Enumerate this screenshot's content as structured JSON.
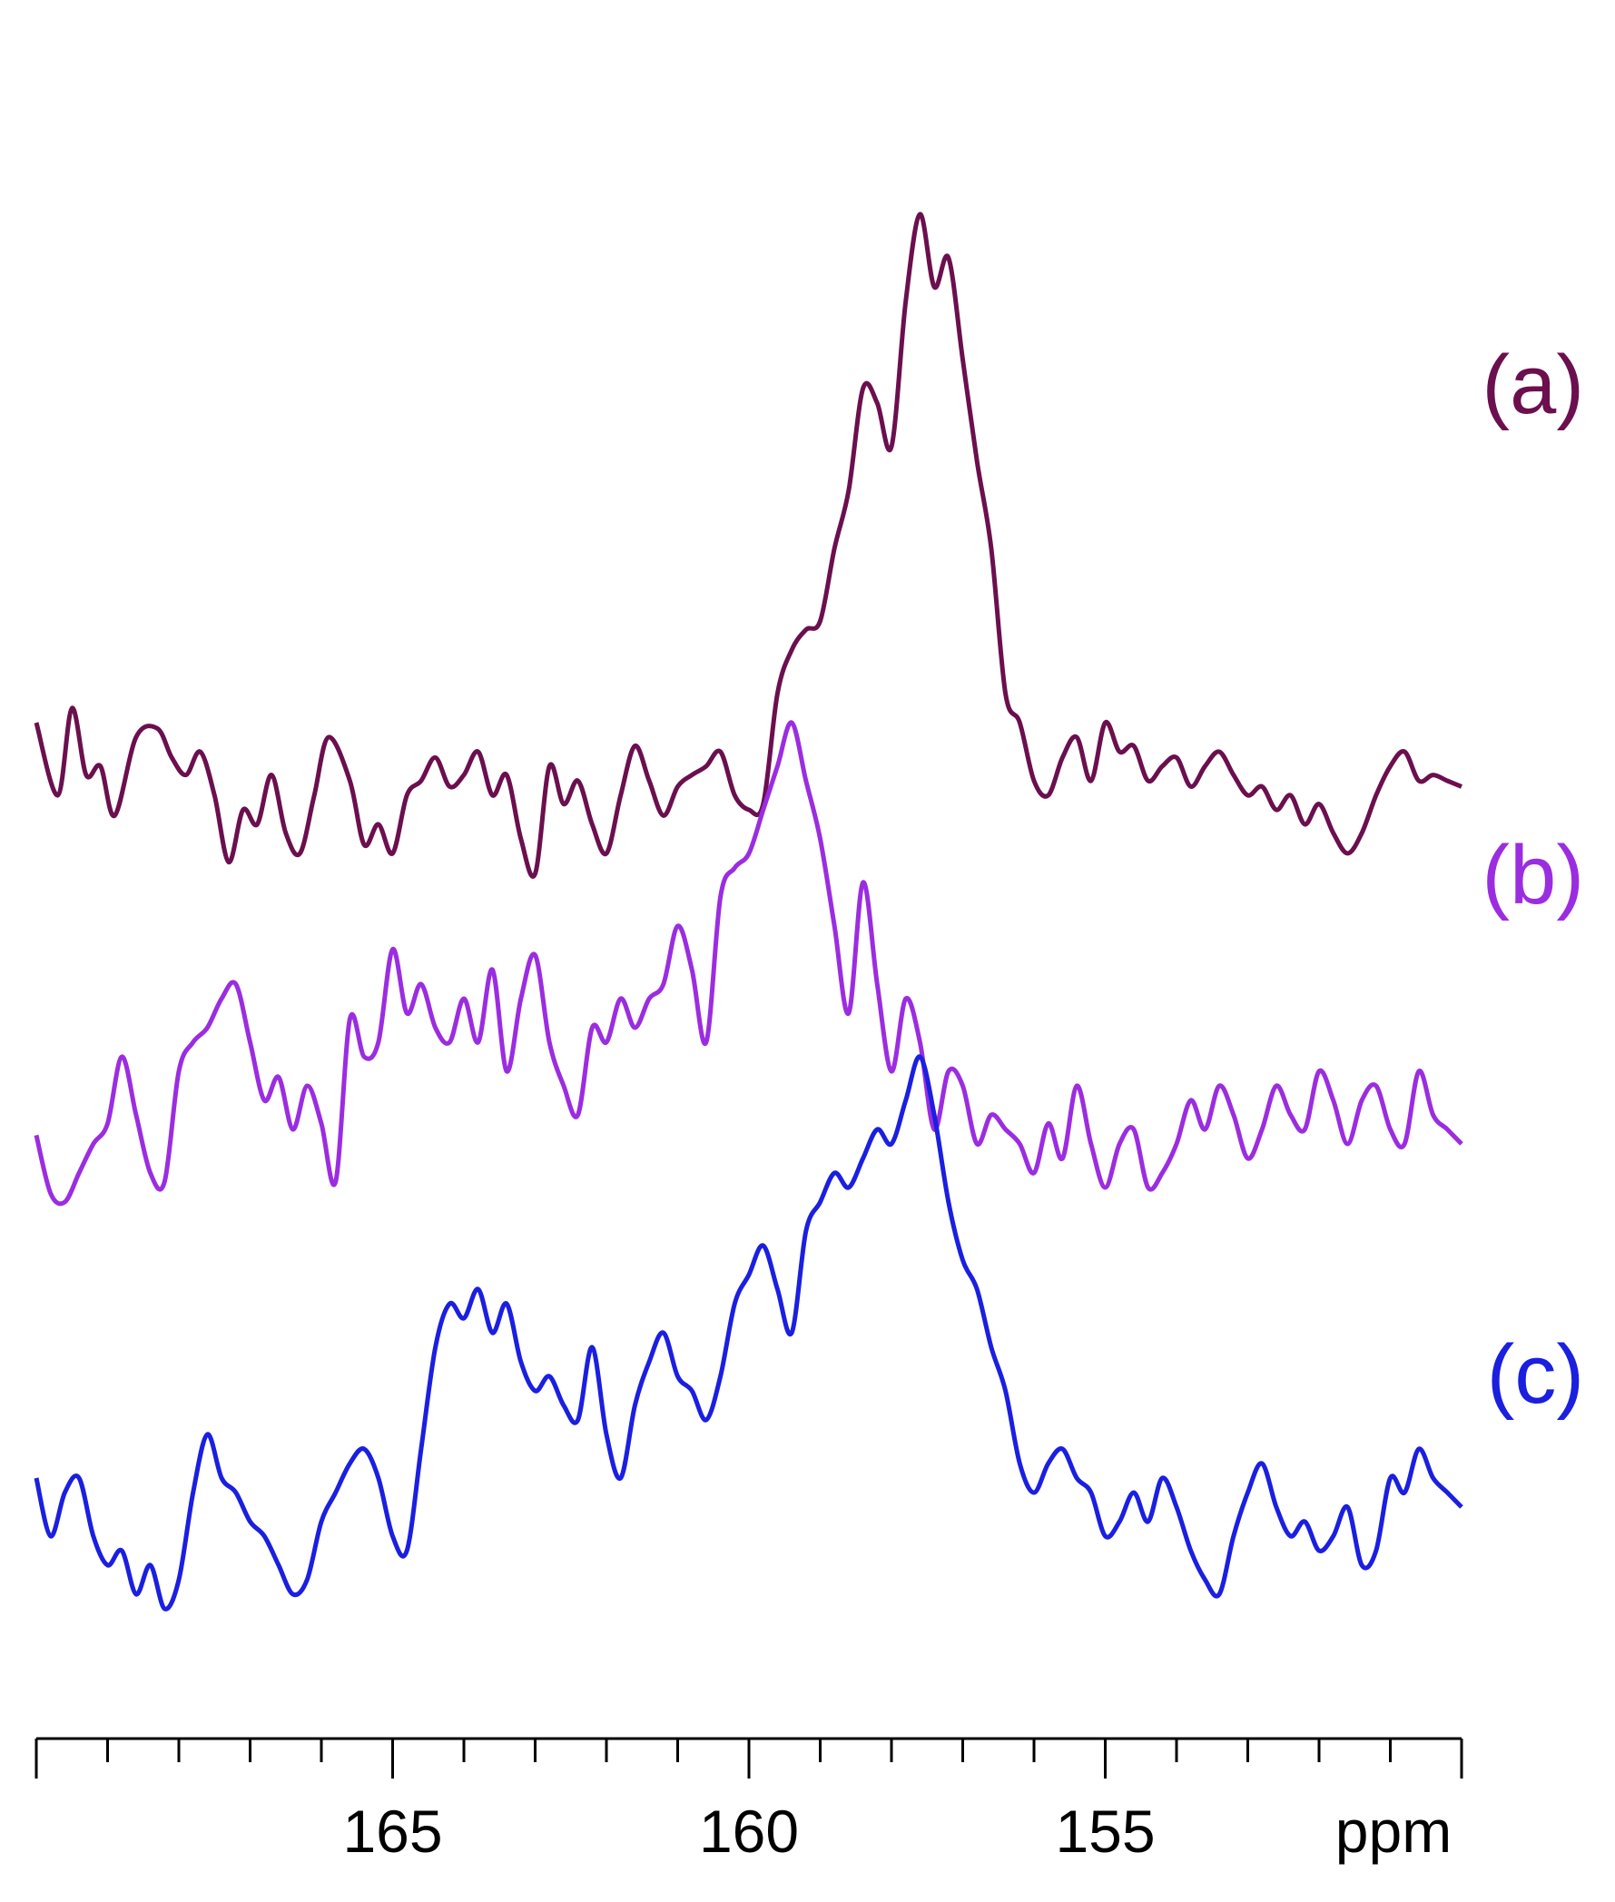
{
  "chart_data": {
    "type": "line",
    "xlabel": "ppm",
    "xlim": [
      170,
      150
    ],
    "x_reversed": true,
    "x_major_ticks": [
      165,
      160,
      155
    ],
    "x_minor_step": 1,
    "y_axis_shown": false,
    "grid": false,
    "legend": "labels at right of each trace",
    "series": [
      {
        "name": "(a)",
        "color": "#6b0f4e",
        "offset": 2.4,
        "points": [
          [
            170.0,
            0.3
          ],
          [
            169.7,
            0.05
          ],
          [
            169.5,
            0.35
          ],
          [
            169.3,
            0.12
          ],
          [
            169.1,
            0.15
          ],
          [
            168.9,
            -0.02
          ],
          [
            168.6,
            0.25
          ],
          [
            168.3,
            0.28
          ],
          [
            168.1,
            0.18
          ],
          [
            167.9,
            0.12
          ],
          [
            167.7,
            0.2
          ],
          [
            167.5,
            0.05
          ],
          [
            167.3,
            -0.18
          ],
          [
            167.1,
            0.0
          ],
          [
            166.9,
            -0.05
          ],
          [
            166.7,
            0.12
          ],
          [
            166.5,
            -0.08
          ],
          [
            166.3,
            -0.15
          ],
          [
            166.1,
            0.05
          ],
          [
            165.9,
            0.25
          ],
          [
            165.6,
            0.1
          ],
          [
            165.4,
            -0.12
          ],
          [
            165.2,
            -0.05
          ],
          [
            165.0,
            -0.15
          ],
          [
            164.8,
            0.05
          ],
          [
            164.6,
            0.1
          ],
          [
            164.4,
            0.18
          ],
          [
            164.2,
            0.08
          ],
          [
            164.0,
            0.12
          ],
          [
            163.8,
            0.2
          ],
          [
            163.6,
            0.05
          ],
          [
            163.4,
            0.12
          ],
          [
            163.2,
            -0.1
          ],
          [
            163.0,
            -0.22
          ],
          [
            162.8,
            0.15
          ],
          [
            162.6,
            0.02
          ],
          [
            162.4,
            0.1
          ],
          [
            162.2,
            -0.05
          ],
          [
            162.0,
            -0.15
          ],
          [
            161.8,
            0.05
          ],
          [
            161.6,
            0.22
          ],
          [
            161.4,
            0.1
          ],
          [
            161.2,
            -0.02
          ],
          [
            161.0,
            0.08
          ],
          [
            160.8,
            0.12
          ],
          [
            160.6,
            0.15
          ],
          [
            160.4,
            0.2
          ],
          [
            160.2,
            0.05
          ],
          [
            160.0,
            0.0
          ],
          [
            159.8,
            0.02
          ],
          [
            159.6,
            0.4
          ],
          [
            159.4,
            0.55
          ],
          [
            159.2,
            0.62
          ],
          [
            159.0,
            0.65
          ],
          [
            158.8,
            0.9
          ],
          [
            158.6,
            1.1
          ],
          [
            158.4,
            1.45
          ],
          [
            158.2,
            1.4
          ],
          [
            158.0,
            1.25
          ],
          [
            157.8,
            1.75
          ],
          [
            157.6,
            2.05
          ],
          [
            157.4,
            1.8
          ],
          [
            157.2,
            1.9
          ],
          [
            157.0,
            1.55
          ],
          [
            156.8,
            1.2
          ],
          [
            156.6,
            0.9
          ],
          [
            156.4,
            0.4
          ],
          [
            156.2,
            0.3
          ],
          [
            156.0,
            0.1
          ],
          [
            155.8,
            0.05
          ],
          [
            155.6,
            0.18
          ],
          [
            155.4,
            0.25
          ],
          [
            155.2,
            0.1
          ],
          [
            155.0,
            0.3
          ],
          [
            154.8,
            0.2
          ],
          [
            154.6,
            0.22
          ],
          [
            154.4,
            0.1
          ],
          [
            154.2,
            0.15
          ],
          [
            154.0,
            0.18
          ],
          [
            153.8,
            0.08
          ],
          [
            153.6,
            0.15
          ],
          [
            153.4,
            0.2
          ],
          [
            153.2,
            0.12
          ],
          [
            153.0,
            0.05
          ],
          [
            152.8,
            0.08
          ],
          [
            152.6,
            0.0
          ],
          [
            152.4,
            0.05
          ],
          [
            152.2,
            -0.05
          ],
          [
            152.0,
            0.02
          ],
          [
            151.8,
            -0.08
          ],
          [
            151.6,
            -0.15
          ],
          [
            151.4,
            -0.08
          ],
          [
            151.2,
            0.05
          ],
          [
            151.0,
            0.15
          ],
          [
            150.8,
            0.2
          ],
          [
            150.6,
            0.1
          ],
          [
            150.4,
            0.12
          ],
          [
            150.2,
            0.1
          ],
          [
            150.0,
            0.08
          ]
        ]
      },
      {
        "name": "(b)",
        "color": "#9b2de0",
        "offset": 1.2,
        "points": [
          [
            170.0,
            0.08
          ],
          [
            169.8,
            -0.12
          ],
          [
            169.6,
            -0.15
          ],
          [
            169.4,
            -0.05
          ],
          [
            169.2,
            0.05
          ],
          [
            169.0,
            0.12
          ],
          [
            168.8,
            0.35
          ],
          [
            168.6,
            0.15
          ],
          [
            168.4,
            -0.05
          ],
          [
            168.2,
            -0.08
          ],
          [
            168.0,
            0.3
          ],
          [
            167.8,
            0.4
          ],
          [
            167.6,
            0.45
          ],
          [
            167.4,
            0.55
          ],
          [
            167.2,
            0.6
          ],
          [
            167.0,
            0.4
          ],
          [
            166.8,
            0.2
          ],
          [
            166.6,
            0.28
          ],
          [
            166.4,
            0.1
          ],
          [
            166.2,
            0.25
          ],
          [
            166.0,
            0.12
          ],
          [
            165.8,
            -0.08
          ],
          [
            165.6,
            0.48
          ],
          [
            165.4,
            0.35
          ],
          [
            165.2,
            0.4
          ],
          [
            165.0,
            0.72
          ],
          [
            164.8,
            0.5
          ],
          [
            164.6,
            0.6
          ],
          [
            164.4,
            0.45
          ],
          [
            164.2,
            0.4
          ],
          [
            164.0,
            0.55
          ],
          [
            163.8,
            0.4
          ],
          [
            163.6,
            0.65
          ],
          [
            163.4,
            0.3
          ],
          [
            163.2,
            0.55
          ],
          [
            163.0,
            0.7
          ],
          [
            162.8,
            0.4
          ],
          [
            162.6,
            0.25
          ],
          [
            162.4,
            0.15
          ],
          [
            162.2,
            0.45
          ],
          [
            162.0,
            0.4
          ],
          [
            161.8,
            0.55
          ],
          [
            161.6,
            0.45
          ],
          [
            161.4,
            0.55
          ],
          [
            161.2,
            0.6
          ],
          [
            161.0,
            0.8
          ],
          [
            160.8,
            0.65
          ],
          [
            160.6,
            0.4
          ],
          [
            160.4,
            0.9
          ],
          [
            160.2,
            1.0
          ],
          [
            160.0,
            1.05
          ],
          [
            159.8,
            1.2
          ],
          [
            159.6,
            1.35
          ],
          [
            159.4,
            1.5
          ],
          [
            159.2,
            1.3
          ],
          [
            159.0,
            1.1
          ],
          [
            158.8,
            0.8
          ],
          [
            158.6,
            0.5
          ],
          [
            158.4,
            0.95
          ],
          [
            158.2,
            0.6
          ],
          [
            158.0,
            0.3
          ],
          [
            157.8,
            0.55
          ],
          [
            157.6,
            0.4
          ],
          [
            157.4,
            0.1
          ],
          [
            157.2,
            0.3
          ],
          [
            157.0,
            0.25
          ],
          [
            156.8,
            0.05
          ],
          [
            156.6,
            0.15
          ],
          [
            156.4,
            0.1
          ],
          [
            156.2,
            0.05
          ],
          [
            156.0,
            -0.05
          ],
          [
            155.8,
            0.12
          ],
          [
            155.6,
            0.0
          ],
          [
            155.4,
            0.25
          ],
          [
            155.2,
            0.05
          ],
          [
            155.0,
            -0.1
          ],
          [
            154.8,
            0.05
          ],
          [
            154.6,
            0.1
          ],
          [
            154.4,
            -0.1
          ],
          [
            154.2,
            -0.05
          ],
          [
            154.0,
            0.05
          ],
          [
            153.8,
            0.2
          ],
          [
            153.6,
            0.1
          ],
          [
            153.4,
            0.25
          ],
          [
            153.2,
            0.15
          ],
          [
            153.0,
            0.0
          ],
          [
            152.8,
            0.1
          ],
          [
            152.6,
            0.25
          ],
          [
            152.4,
            0.15
          ],
          [
            152.2,
            0.1
          ],
          [
            152.0,
            0.3
          ],
          [
            151.8,
            0.2
          ],
          [
            151.6,
            0.05
          ],
          [
            151.4,
            0.2
          ],
          [
            151.2,
            0.25
          ],
          [
            151.0,
            0.1
          ],
          [
            150.8,
            0.05
          ],
          [
            150.6,
            0.3
          ],
          [
            150.4,
            0.15
          ],
          [
            150.2,
            0.1
          ],
          [
            150.0,
            0.05
          ]
        ]
      },
      {
        "name": "(c)",
        "color": "#1a1fe0",
        "offset": 0.0,
        "points": [
          [
            170.0,
            0.1
          ],
          [
            169.8,
            -0.1
          ],
          [
            169.6,
            0.05
          ],
          [
            169.4,
            0.1
          ],
          [
            169.2,
            -0.1
          ],
          [
            169.0,
            -0.2
          ],
          [
            168.8,
            -0.15
          ],
          [
            168.6,
            -0.3
          ],
          [
            168.4,
            -0.2
          ],
          [
            168.2,
            -0.35
          ],
          [
            168.0,
            -0.25
          ],
          [
            167.8,
            0.05
          ],
          [
            167.6,
            0.25
          ],
          [
            167.4,
            0.1
          ],
          [
            167.2,
            0.05
          ],
          [
            167.0,
            -0.05
          ],
          [
            166.8,
            -0.1
          ],
          [
            166.6,
            -0.2
          ],
          [
            166.4,
            -0.3
          ],
          [
            166.2,
            -0.25
          ],
          [
            166.0,
            -0.05
          ],
          [
            165.8,
            0.05
          ],
          [
            165.6,
            0.15
          ],
          [
            165.4,
            0.2
          ],
          [
            165.2,
            0.1
          ],
          [
            165.0,
            -0.1
          ],
          [
            164.8,
            -0.15
          ],
          [
            164.6,
            0.2
          ],
          [
            164.4,
            0.55
          ],
          [
            164.2,
            0.7
          ],
          [
            164.0,
            0.65
          ],
          [
            163.8,
            0.75
          ],
          [
            163.6,
            0.6
          ],
          [
            163.4,
            0.7
          ],
          [
            163.2,
            0.5
          ],
          [
            163.0,
            0.4
          ],
          [
            162.8,
            0.45
          ],
          [
            162.6,
            0.35
          ],
          [
            162.4,
            0.3
          ],
          [
            162.2,
            0.55
          ],
          [
            162.0,
            0.25
          ],
          [
            161.8,
            0.1
          ],
          [
            161.6,
            0.35
          ],
          [
            161.4,
            0.5
          ],
          [
            161.2,
            0.6
          ],
          [
            161.0,
            0.45
          ],
          [
            160.8,
            0.4
          ],
          [
            160.6,
            0.3
          ],
          [
            160.4,
            0.45
          ],
          [
            160.2,
            0.7
          ],
          [
            160.0,
            0.8
          ],
          [
            159.8,
            0.9
          ],
          [
            159.6,
            0.75
          ],
          [
            159.4,
            0.6
          ],
          [
            159.2,
            0.95
          ],
          [
            159.0,
            1.05
          ],
          [
            158.8,
            1.15
          ],
          [
            158.6,
            1.1
          ],
          [
            158.4,
            1.2
          ],
          [
            158.2,
            1.3
          ],
          [
            158.0,
            1.25
          ],
          [
            157.8,
            1.4
          ],
          [
            157.6,
            1.55
          ],
          [
            157.4,
            1.35
          ],
          [
            157.2,
            1.05
          ],
          [
            157.0,
            0.85
          ],
          [
            156.8,
            0.75
          ],
          [
            156.6,
            0.55
          ],
          [
            156.4,
            0.4
          ],
          [
            156.2,
            0.15
          ],
          [
            156.0,
            0.05
          ],
          [
            155.8,
            0.15
          ],
          [
            155.6,
            0.2
          ],
          [
            155.4,
            0.1
          ],
          [
            155.2,
            0.05
          ],
          [
            155.0,
            -0.1
          ],
          [
            154.8,
            -0.05
          ],
          [
            154.6,
            0.05
          ],
          [
            154.4,
            -0.05
          ],
          [
            154.2,
            0.1
          ],
          [
            154.0,
            0.0
          ],
          [
            153.8,
            -0.15
          ],
          [
            153.6,
            -0.25
          ],
          [
            153.4,
            -0.3
          ],
          [
            153.2,
            -0.1
          ],
          [
            153.0,
            0.05
          ],
          [
            152.8,
            0.15
          ],
          [
            152.6,
            0.0
          ],
          [
            152.4,
            -0.1
          ],
          [
            152.2,
            -0.05
          ],
          [
            152.0,
            -0.15
          ],
          [
            151.8,
            -0.1
          ],
          [
            151.6,
            0.0
          ],
          [
            151.4,
            -0.2
          ],
          [
            151.2,
            -0.15
          ],
          [
            151.0,
            0.1
          ],
          [
            150.8,
            0.05
          ],
          [
            150.6,
            0.2
          ],
          [
            150.4,
            0.1
          ],
          [
            150.2,
            0.05
          ],
          [
            150.0,
            0.0
          ]
        ]
      }
    ]
  }
}
